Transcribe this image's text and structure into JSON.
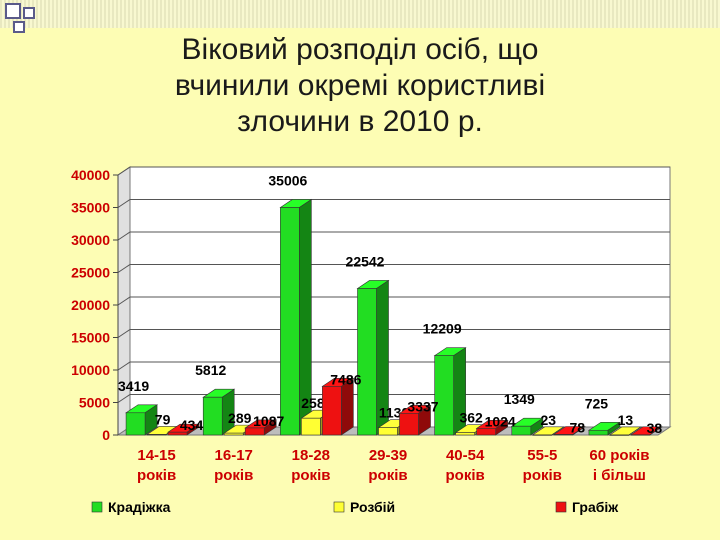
{
  "title_lines": [
    "Віковий розподіл осіб, що",
    "вчинили окремі користливі",
    "злочини в 2010 р."
  ],
  "colors": {
    "background": "#fdfdb4",
    "series": [
      "#22dd22",
      "#ffff33",
      "#ee1111"
    ]
  },
  "chart_data": {
    "type": "bar",
    "categories": [
      [
        "14-15",
        "років"
      ],
      [
        "16-17",
        "років"
      ],
      [
        "18-28",
        "років"
      ],
      [
        "29-39",
        "років"
      ],
      [
        "40-54",
        "років"
      ],
      [
        "55-5",
        "років"
      ],
      [
        "60 років",
        "і більш"
      ]
    ],
    "series": [
      {
        "name": "Крадіжка",
        "values": [
          3419,
          5812,
          35006,
          22542,
          12209,
          1349,
          725
        ]
      },
      {
        "name": "Розбій",
        "values": [
          79,
          289,
          2582,
          1130,
          362,
          23,
          13
        ]
      },
      {
        "name": "Грабіж",
        "values": [
          434,
          1087,
          7486,
          3337,
          1024,
          78,
          38
        ]
      }
    ],
    "ylim": [
      0,
      40000
    ],
    "yticks": [
      0,
      5000,
      10000,
      15000,
      20000,
      25000,
      30000,
      35000,
      40000
    ],
    "grid": true,
    "legend_position": "bottom",
    "style": "3d-columns"
  }
}
